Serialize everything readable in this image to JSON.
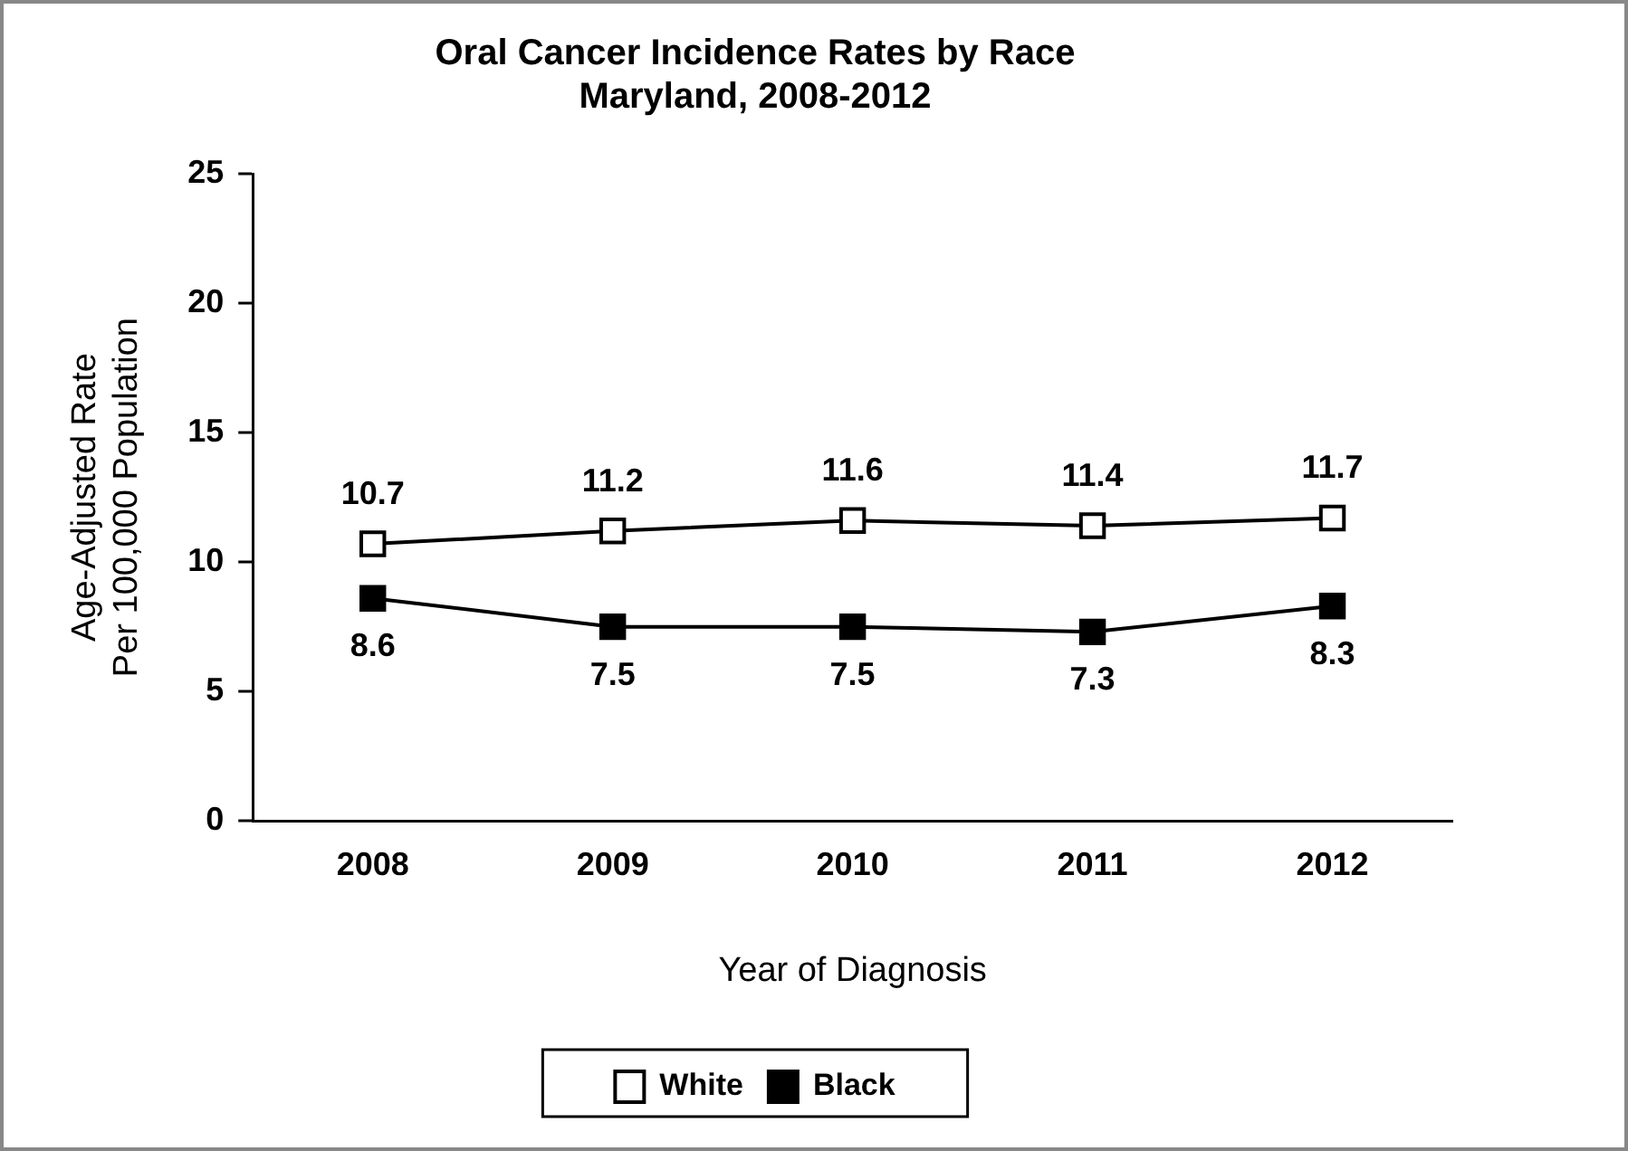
{
  "chart_data": {
    "type": "line",
    "title": [
      "Oral Cancer Incidence Rates by Race",
      "Maryland, 2008-2012"
    ],
    "xlabel": "Year of Diagnosis",
    "ylabel": [
      "Age-Adjusted Rate",
      "Per 100,000 Population"
    ],
    "categories": [
      "2008",
      "2009",
      "2010",
      "2011",
      "2012"
    ],
    "series": [
      {
        "name": "White",
        "color": "#ffffff",
        "values": [
          10.7,
          11.2,
          11.6,
          11.4,
          11.7
        ]
      },
      {
        "name": "Black",
        "color": "#000000",
        "values": [
          8.6,
          7.5,
          7.5,
          7.3,
          8.3
        ]
      }
    ],
    "ylim": [
      0,
      25
    ],
    "yticks": [
      0,
      5,
      10,
      15,
      20,
      25
    ],
    "grid": false,
    "legend": "bottom",
    "marker": "square",
    "line_style": "solid",
    "data_labels": true
  }
}
